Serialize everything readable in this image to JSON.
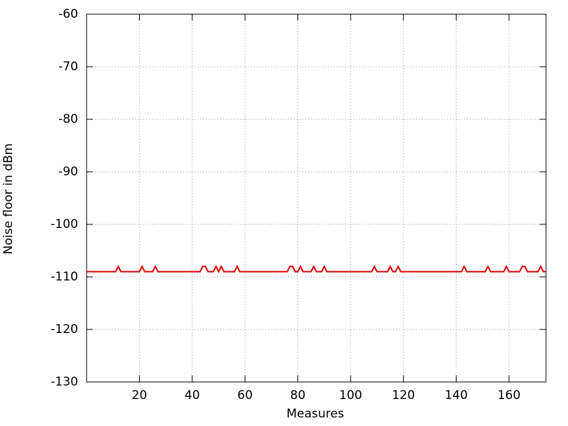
{
  "chart_data": {
    "type": "line",
    "xlabel": "Measures",
    "ylabel": "Noise floor in dBm",
    "color": "#e00000",
    "grid": true,
    "xlim": [
      0,
      174
    ],
    "ylim": [
      -130,
      -60
    ],
    "xticks": [
      20,
      40,
      60,
      80,
      100,
      120,
      140,
      160
    ],
    "yticks": [
      -60,
      -70,
      -80,
      -90,
      -100,
      -110,
      -120,
      -130
    ],
    "x": [
      0,
      1,
      2,
      3,
      4,
      5,
      6,
      7,
      8,
      9,
      10,
      11,
      12,
      13,
      14,
      15,
      16,
      17,
      18,
      19,
      20,
      21,
      22,
      23,
      24,
      25,
      26,
      27,
      28,
      29,
      30,
      31,
      32,
      33,
      34,
      35,
      36,
      37,
      38,
      39,
      40,
      41,
      42,
      43,
      44,
      45,
      46,
      47,
      48,
      49,
      50,
      51,
      52,
      53,
      54,
      55,
      56,
      57,
      58,
      59,
      60,
      61,
      62,
      63,
      64,
      65,
      66,
      67,
      68,
      69,
      70,
      71,
      72,
      73,
      74,
      75,
      76,
      77,
      78,
      79,
      80,
      81,
      82,
      83,
      84,
      85,
      86,
      87,
      88,
      89,
      90,
      91,
      92,
      93,
      94,
      95,
      96,
      97,
      98,
      99,
      100,
      101,
      102,
      103,
      104,
      105,
      106,
      107,
      108,
      109,
      110,
      111,
      112,
      113,
      114,
      115,
      116,
      117,
      118,
      119,
      120,
      121,
      122,
      123,
      124,
      125,
      126,
      127,
      128,
      129,
      130,
      131,
      132,
      133,
      134,
      135,
      136,
      137,
      138,
      139,
      140,
      141,
      142,
      143,
      144,
      145,
      146,
      147,
      148,
      149,
      150,
      151,
      152,
      153,
      154,
      155,
      156,
      157,
      158,
      159,
      160,
      161,
      162,
      163,
      164,
      165,
      166,
      167,
      168,
      169,
      170,
      171,
      172,
      173,
      174
    ],
    "values": [
      -109,
      -109,
      -109,
      -109,
      -109,
      -109,
      -109,
      -109,
      -109,
      -109,
      -109,
      -109,
      -108,
      -109,
      -109,
      -109,
      -109,
      -109,
      -109,
      -109,
      -109,
      -108,
      -109,
      -109,
      -109,
      -109,
      -108,
      -109,
      -109,
      -109,
      -109,
      -109,
      -109,
      -109,
      -109,
      -109,
      -109,
      -109,
      -109,
      -109,
      -109,
      -109,
      -109,
      -109,
      -108,
      -108,
      -109,
      -109,
      -109,
      -108,
      -109,
      -108,
      -109,
      -109,
      -109,
      -109,
      -109,
      -108,
      -109,
      -109,
      -109,
      -109,
      -109,
      -109,
      -109,
      -109,
      -109,
      -109,
      -109,
      -109,
      -109,
      -109,
      -109,
      -109,
      -109,
      -109,
      -109,
      -108,
      -108,
      -109,
      -109,
      -108,
      -109,
      -109,
      -109,
      -109,
      -108,
      -109,
      -109,
      -109,
      -108,
      -109,
      -109,
      -109,
      -109,
      -109,
      -109,
      -109,
      -109,
      -109,
      -109,
      -109,
      -109,
      -109,
      -109,
      -109,
      -109,
      -109,
      -109,
      -108,
      -109,
      -109,
      -109,
      -109,
      -109,
      -108,
      -109,
      -109,
      -108,
      -109,
      -109,
      -109,
      -109,
      -109,
      -109,
      -109,
      -109,
      -109,
      -109,
      -109,
      -109,
      -109,
      -109,
      -109,
      -109,
      -109,
      -109,
      -109,
      -109,
      -109,
      -109,
      -109,
      -109,
      -108,
      -109,
      -109,
      -109,
      -109,
      -109,
      -109,
      -109,
      -109,
      -108,
      -109,
      -109,
      -109,
      -109,
      -109,
      -109,
      -108,
      -109,
      -109,
      -109,
      -109,
      -109,
      -108,
      -108,
      -109,
      -109,
      -109,
      -109,
      -109,
      -108,
      -109,
      -109
    ]
  }
}
